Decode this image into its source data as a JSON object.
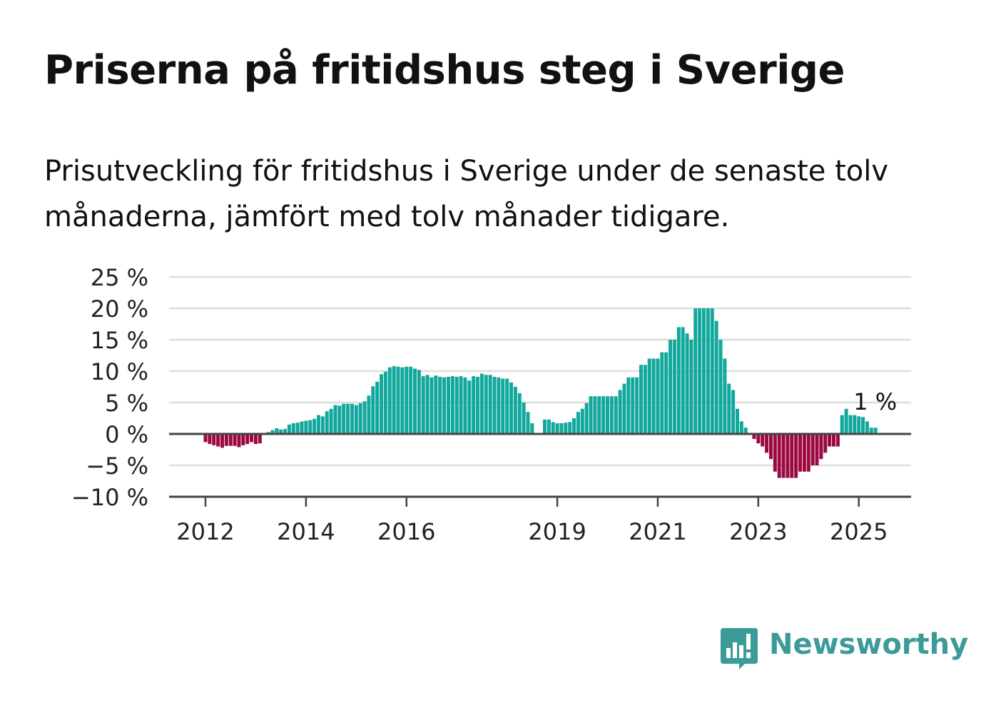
{
  "title": "Priserna på fritidshus steg i Sverige",
  "subtitle": "Prisutveckling för fritidshus i Sverige under de senaste tolv månaderna, jämfört med tolv månader tidigare.",
  "brand": {
    "name": "Newsworthy",
    "icon": "newsworthy-chart-icon",
    "color": "#3b9b98"
  },
  "colors": {
    "positive": "#12a89c",
    "negative": "#9c0942",
    "grid": "#dddddd",
    "zero_line": "#444444"
  },
  "chart_data": {
    "type": "bar",
    "ylim": [
      -10,
      25
    ],
    "y_ticks": [
      25,
      20,
      15,
      10,
      5,
      0,
      -5,
      -10
    ],
    "y_tick_labels": [
      "25 %",
      "20 %",
      "15 %",
      "10 %",
      "5 %",
      "0 %",
      "−5 %",
      "−10 %"
    ],
    "x_ticks": [
      "2012",
      "2014",
      "2016",
      "2019",
      "2021",
      "2023",
      "2025"
    ],
    "annotation": "1 %",
    "grid": true,
    "start": "2011-05",
    "values": [
      0,
      0,
      0,
      0,
      0,
      0,
      0,
      0,
      -1.3,
      -1.6,
      -1.8,
      -2.0,
      -2.2,
      -1.9,
      -1.9,
      -1.9,
      -2.1,
      -1.8,
      -1.6,
      -1.3,
      -1.6,
      -1.5,
      0,
      0.3,
      0.6,
      0.9,
      0.7,
      0.8,
      1.5,
      1.7,
      1.8,
      2.0,
      2.1,
      2.2,
      2.4,
      3.0,
      2.8,
      3.6,
      4.0,
      4.6,
      4.5,
      4.8,
      4.8,
      4.8,
      4.6,
      4.9,
      5.2,
      6.1,
      7.6,
      8.3,
      9.5,
      9.9,
      10.6,
      10.8,
      10.7,
      10.6,
      10.7,
      10.7,
      10.4,
      10.2,
      9.2,
      9.4,
      9.0,
      9.3,
      9.1,
      9.0,
      9.1,
      9.2,
      9.1,
      9.2,
      9.0,
      8.5,
      9.2,
      9.1,
      9.6,
      9.4,
      9.4,
      9.1,
      9.0,
      8.8,
      8.8,
      8.2,
      7.5,
      6.5,
      5.0,
      3.5,
      1.7,
      0,
      0,
      2.3,
      2.3,
      1.9,
      1.7,
      1.7,
      1.8,
      1.9,
      2.5,
      3.5,
      4.0,
      4.9,
      6.0,
      6.0,
      6.0,
      6.0,
      6.0,
      6.0,
      6.0,
      7.0,
      8.0,
      9.0,
      9.0,
      9.0,
      11.0,
      11.0,
      12.0,
      12.0,
      12.0,
      13.0,
      13.0,
      15.0,
      15.0,
      17.0,
      17.0,
      16.0,
      15.0,
      20.0,
      20.0,
      20.0,
      20.0,
      20.0,
      18.0,
      15.0,
      12.0,
      8.0,
      7.0,
      4.0,
      2.0,
      1.0,
      0,
      -0.8,
      -1.5,
      -2.0,
      -3.0,
      -4.0,
      -6.0,
      -7.0,
      -7.0,
      -7.0,
      -7.0,
      -7.0,
      -6.0,
      -6.0,
      -6.0,
      -5.0,
      -5.0,
      -4.0,
      -3.0,
      -2.0,
      -2.0,
      -2.0,
      3.0,
      4.0,
      3.0,
      3.0,
      2.8,
      2.7,
      2.0,
      1.0,
      1.0
    ]
  }
}
